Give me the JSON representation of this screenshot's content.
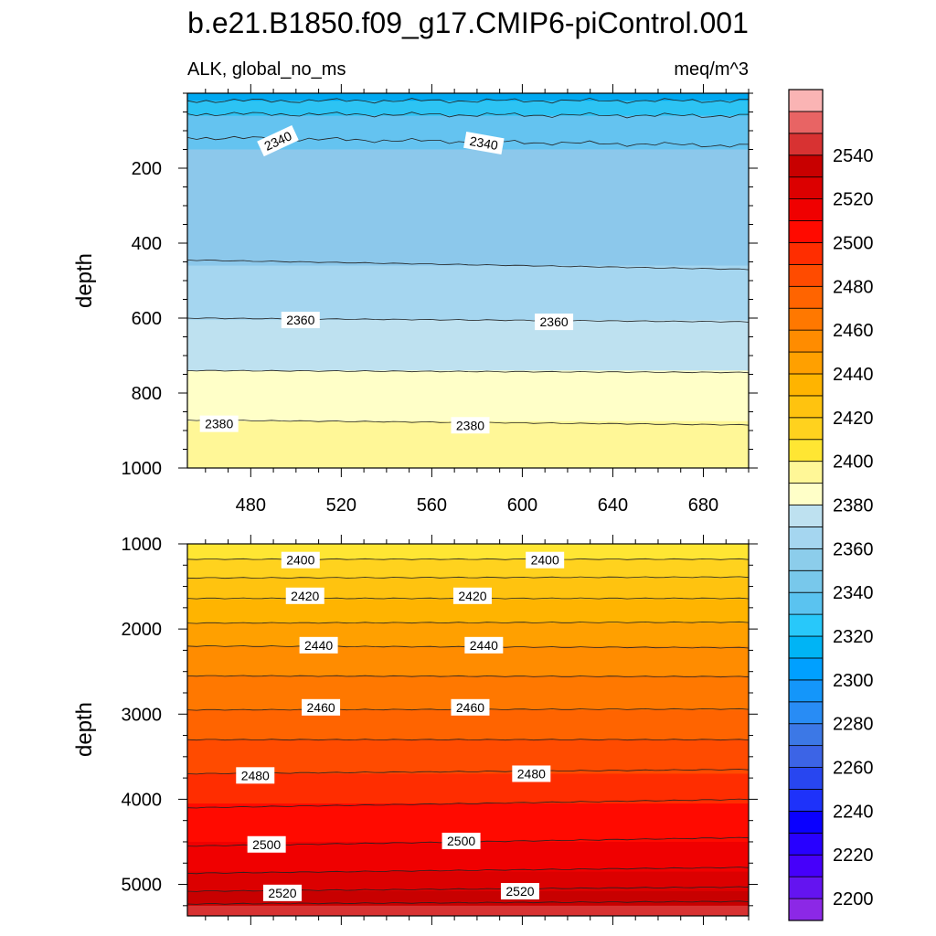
{
  "title": "b.e21.B1850.f09_g17.CMIP6-piControl.001",
  "chart_data": [
    {
      "type": "contour",
      "panel": "upper",
      "left_string": "ALK, global_no_ms",
      "right_string": "meq/m^3",
      "xlabel": "",
      "ylabel": "depth",
      "xlim": [
        452,
        700
      ],
      "ylim": [
        0,
        1000
      ],
      "y_inverted": true,
      "x_ticks": [
        480,
        520,
        560,
        600,
        640,
        680
      ],
      "y_ticks": [
        200,
        400,
        600,
        800,
        1000
      ],
      "bands": [
        {
          "from": 0,
          "to": 20,
          "fill": "#00A8F0"
        },
        {
          "from": 20,
          "to": 60,
          "fill": "#2DC3F3"
        },
        {
          "from": 60,
          "to": 150,
          "fill": "#64C3F0"
        },
        {
          "from": 150,
          "to": 460,
          "fill": "#8CC8EB"
        },
        {
          "from": 460,
          "to": 605,
          "fill": "#A5D6F0"
        },
        {
          "from": 605,
          "to": 740,
          "fill": "#BEE1F0"
        },
        {
          "from": 740,
          "to": 875,
          "fill": "#FFFFC8"
        },
        {
          "from": 875,
          "to": 1000,
          "fill": "#FFF797"
        }
      ],
      "contour_lines": [
        {
          "level": 2320,
          "y_left": 20,
          "y_right": 20,
          "wavy": true
        },
        {
          "level": 2330,
          "y_left": 55,
          "y_right": 60,
          "wavy": true
        },
        {
          "level": 2340,
          "y_left": 118,
          "y_right": 140,
          "wavy": true
        },
        {
          "level": 2350,
          "y_left": 445,
          "y_right": 470,
          "wavy": false
        },
        {
          "level": 2360,
          "y_left": 600,
          "y_right": 610,
          "wavy": false
        },
        {
          "level": 2370,
          "y_left": 740,
          "y_right": 745,
          "wavy": false
        },
        {
          "level": 2380,
          "y_left": 872,
          "y_right": 885,
          "wavy": false
        }
      ],
      "contour_labels": [
        {
          "text": "2340",
          "x": 492,
          "y": 127,
          "angle": -25
        },
        {
          "text": "2340",
          "x": 583,
          "y": 133,
          "angle": 10
        },
        {
          "text": "2360",
          "x": 502,
          "y": 605,
          "angle": 0
        },
        {
          "text": "2360",
          "x": 614,
          "y": 610,
          "angle": 0
        },
        {
          "text": "2380",
          "x": 466,
          "y": 882,
          "angle": 0
        },
        {
          "text": "2380",
          "x": 577,
          "y": 886,
          "angle": 0
        }
      ]
    },
    {
      "type": "contour",
      "panel": "lower",
      "xlabel": "",
      "ylabel": "depth",
      "xlim": [
        452,
        700
      ],
      "ylim": [
        1000,
        5370
      ],
      "y_inverted": true,
      "x_ticks": [
        480,
        520,
        560,
        600,
        640,
        680
      ],
      "y_ticks": [
        1000,
        2000,
        3000,
        4000,
        5000
      ],
      "bands": [
        {
          "from": 1000,
          "to": 1180,
          "fill": "#FFE633"
        },
        {
          "from": 1180,
          "to": 1400,
          "fill": "#FFD21E"
        },
        {
          "from": 1400,
          "to": 1650,
          "fill": "#FFC30F"
        },
        {
          "from": 1650,
          "to": 1930,
          "fill": "#FFB400"
        },
        {
          "from": 1930,
          "to": 2200,
          "fill": "#FFA000"
        },
        {
          "from": 2200,
          "to": 2550,
          "fill": "#FF8C00"
        },
        {
          "from": 2550,
          "to": 2950,
          "fill": "#FF7800"
        },
        {
          "from": 2950,
          "to": 3300,
          "fill": "#FF6400"
        },
        {
          "from": 3300,
          "to": 3700,
          "fill": "#FF4B00"
        },
        {
          "from": 3700,
          "to": 4050,
          "fill": "#FF2D00"
        },
        {
          "from": 4050,
          "to": 4500,
          "fill": "#FF0A00"
        },
        {
          "from": 4500,
          "to": 4850,
          "fill": "#F00000"
        },
        {
          "from": 4850,
          "to": 5080,
          "fill": "#DC0000"
        },
        {
          "from": 5080,
          "to": 5250,
          "fill": "#C80000"
        },
        {
          "from": 5250,
          "to": 5370,
          "fill": "#D83232"
        }
      ],
      "contour_lines": [
        {
          "level": 2395,
          "y_left": 1180,
          "y_right": 1180
        },
        {
          "level": 2400,
          "y_left": 1400,
          "y_right": 1390
        },
        {
          "level": 2410,
          "y_left": 1640,
          "y_right": 1640
        },
        {
          "level": 2420,
          "y_left": 1930,
          "y_right": 1920
        },
        {
          "level": 2430,
          "y_left": 2200,
          "y_right": 2220
        },
        {
          "level": 2440,
          "y_left": 2550,
          "y_right": 2560
        },
        {
          "level": 2450,
          "y_left": 2950,
          "y_right": 2940
        },
        {
          "level": 2460,
          "y_left": 3300,
          "y_right": 3300
        },
        {
          "level": 2470,
          "y_left": 3700,
          "y_right": 3650
        },
        {
          "level": 2480,
          "y_left": 4100,
          "y_right": 4000
        },
        {
          "level": 2490,
          "y_left": 4550,
          "y_right": 4450
        },
        {
          "level": 2500,
          "y_left": 4870,
          "y_right": 4800
        },
        {
          "level": 2510,
          "y_left": 5080,
          "y_right": 5030
        },
        {
          "level": 2520,
          "y_left": 5230,
          "y_right": 5200
        }
      ],
      "contour_labels": [
        {
          "text": "2400",
          "x": 502,
          "y": 1190
        },
        {
          "text": "2400",
          "x": 610,
          "y": 1190
        },
        {
          "text": "2420",
          "x": 504,
          "y": 1610
        },
        {
          "text": "2420",
          "x": 578,
          "y": 1610
        },
        {
          "text": "2440",
          "x": 510,
          "y": 2190
        },
        {
          "text": "2440",
          "x": 583,
          "y": 2190
        },
        {
          "text": "2460",
          "x": 511,
          "y": 2920
        },
        {
          "text": "2460",
          "x": 577,
          "y": 2920
        },
        {
          "text": "2480",
          "x": 482,
          "y": 3720
        },
        {
          "text": "2480",
          "x": 604,
          "y": 3700
        },
        {
          "text": "2500",
          "x": 487,
          "y": 4530
        },
        {
          "text": "2500",
          "x": 573,
          "y": 4490
        },
        {
          "text": "2520",
          "x": 494,
          "y": 5100
        },
        {
          "text": "2520",
          "x": 599,
          "y": 5080
        }
      ]
    }
  ],
  "colorbar": {
    "levels": [
      2190,
      2200,
      2210,
      2220,
      2230,
      2240,
      2250,
      2260,
      2270,
      2280,
      2290,
      2300,
      2310,
      2320,
      2330,
      2340,
      2350,
      2360,
      2370,
      2380,
      2390,
      2400,
      2410,
      2420,
      2430,
      2440,
      2450,
      2460,
      2470,
      2480,
      2490,
      2500,
      2510,
      2520,
      2530,
      2540,
      2550,
      2560
    ],
    "colors": [
      "#8C28E6",
      "#6414F0",
      "#4600FA",
      "#2800FF",
      "#0A00FF",
      "#1E32FA",
      "#2846F0",
      "#3C64E6",
      "#3C78E6",
      "#288CF5",
      "#1496FA",
      "#00A0FF",
      "#00B4F5",
      "#28C8FA",
      "#5AC3F0",
      "#78C8EB",
      "#8CCDEB",
      "#A5D6F0",
      "#BEE1F0",
      "#FFFFC8",
      "#FFF797",
      "#FFE633",
      "#FFD21E",
      "#FFC30F",
      "#FFB400",
      "#FFA000",
      "#FF8C00",
      "#FF7800",
      "#FF6400",
      "#FF4B00",
      "#FF2D00",
      "#FF0A00",
      "#F00000",
      "#DC0000",
      "#C80000",
      "#D83232",
      "#E86464",
      "#FAB4B4"
    ],
    "labels": [
      "2200",
      "2220",
      "2240",
      "2260",
      "2280",
      "2300",
      "2320",
      "2340",
      "2360",
      "2380",
      "2400",
      "2420",
      "2440",
      "2460",
      "2480",
      "2500",
      "2520",
      "2540"
    ]
  }
}
